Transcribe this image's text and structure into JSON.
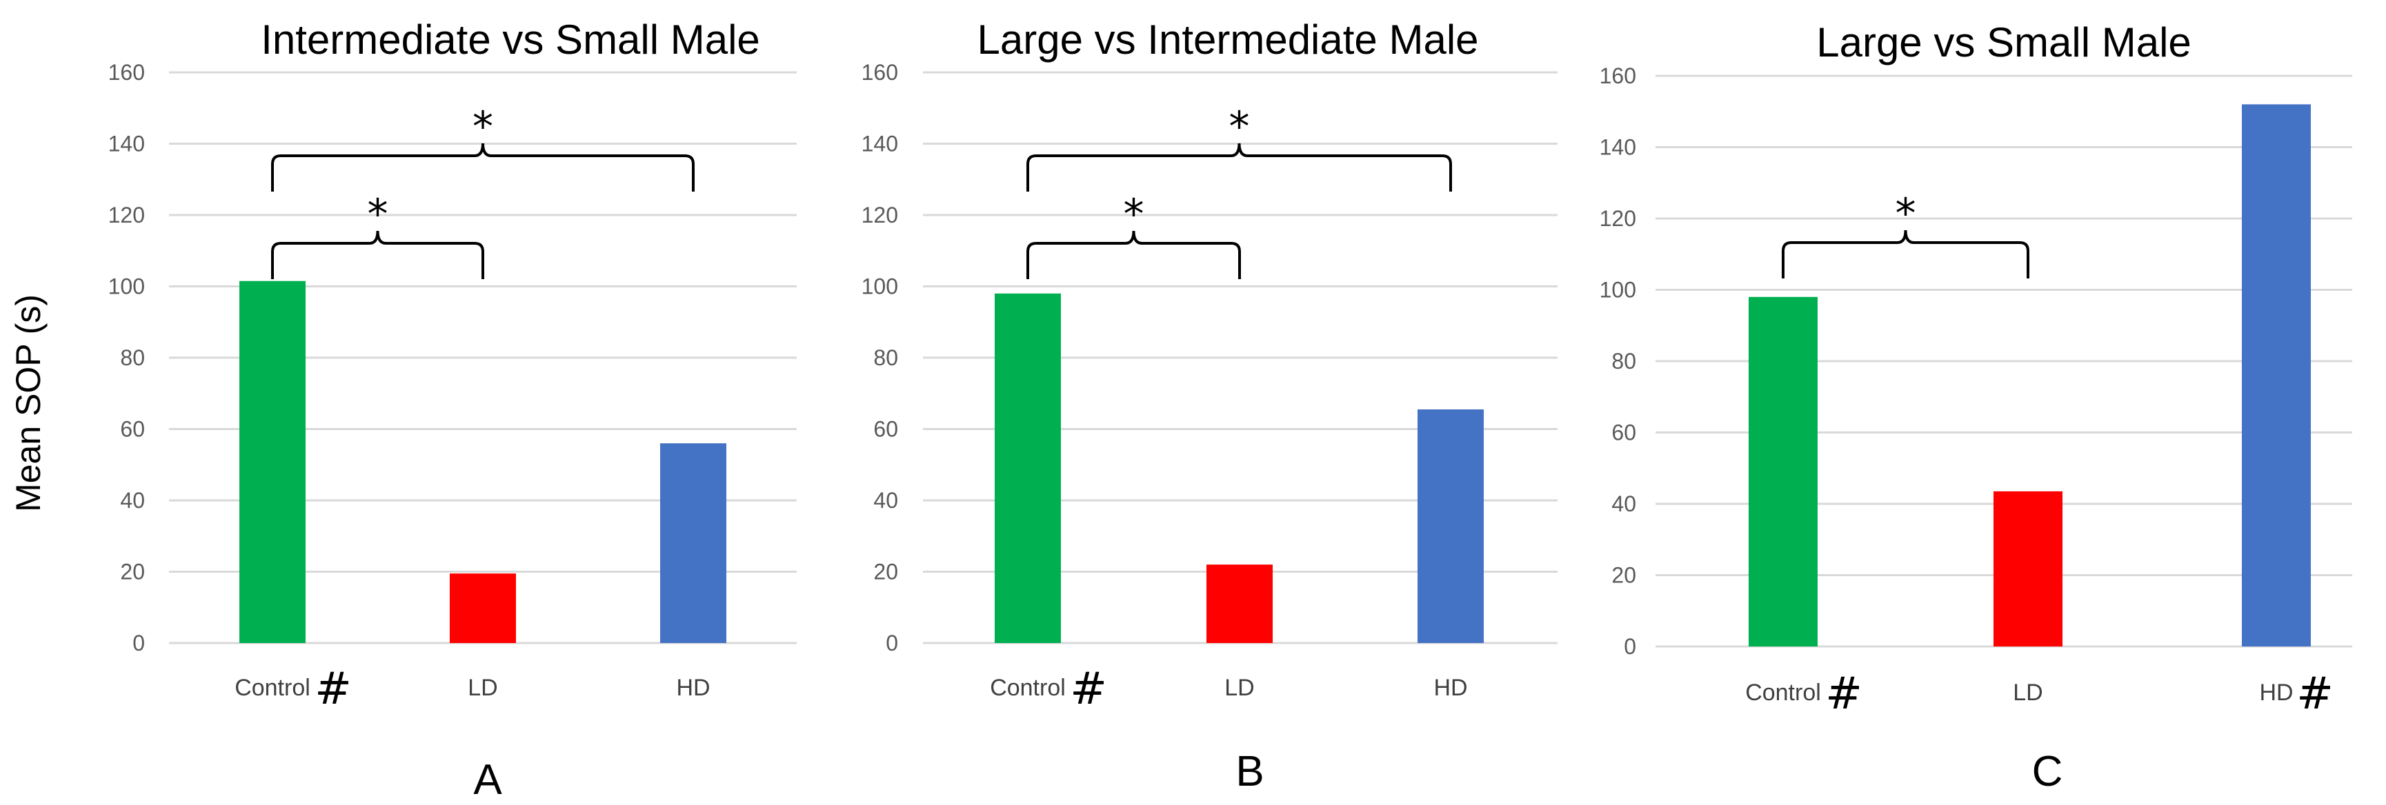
{
  "ylabel": "Mean SOP (s)",
  "colors": {
    "Control": "#00b050",
    "LD": "#ff0000",
    "HD": "#4472c4",
    "grid": "#d9d9d9"
  },
  "chart_data": [
    {
      "type": "bar",
      "panel": "A",
      "title": "Intermediate vs Small Male",
      "categories": [
        "Control",
        "LD",
        "HD"
      ],
      "values": [
        101.5,
        19.5,
        56
      ],
      "ylim": [
        0,
        160
      ],
      "yticks": [
        0,
        20,
        40,
        60,
        80,
        100,
        120,
        140,
        160
      ],
      "ylabel": "Mean SOP (s)",
      "category_markers": [
        "#",
        "",
        ""
      ],
      "significance": [
        {
          "from": "Control",
          "to": "LD",
          "label": "*"
        },
        {
          "from": "Control",
          "to": "HD",
          "label": "*"
        }
      ]
    },
    {
      "type": "bar",
      "panel": "B",
      "title": "Large vs Intermediate Male",
      "categories": [
        "Control",
        "LD",
        "HD"
      ],
      "values": [
        98,
        22,
        65.5
      ],
      "ylim": [
        0,
        160
      ],
      "yticks": [
        0,
        20,
        40,
        60,
        80,
        100,
        120,
        140,
        160
      ],
      "ylabel": "",
      "category_markers": [
        "#",
        "",
        ""
      ],
      "significance": [
        {
          "from": "Control",
          "to": "LD",
          "label": "*"
        },
        {
          "from": "Control",
          "to": "HD",
          "label": "*"
        }
      ]
    },
    {
      "type": "bar",
      "panel": "C",
      "title": "Large vs Small Male",
      "categories": [
        "Control",
        "LD",
        "HD"
      ],
      "values": [
        98,
        43.5,
        152
      ],
      "ylim": [
        0,
        160
      ],
      "yticks": [
        0,
        20,
        40,
        60,
        80,
        100,
        120,
        140,
        160
      ],
      "ylabel": "",
      "category_markers": [
        "#",
        "",
        "#"
      ],
      "significance": [
        {
          "from": "Control",
          "to": "LD",
          "label": "*"
        }
      ]
    }
  ]
}
